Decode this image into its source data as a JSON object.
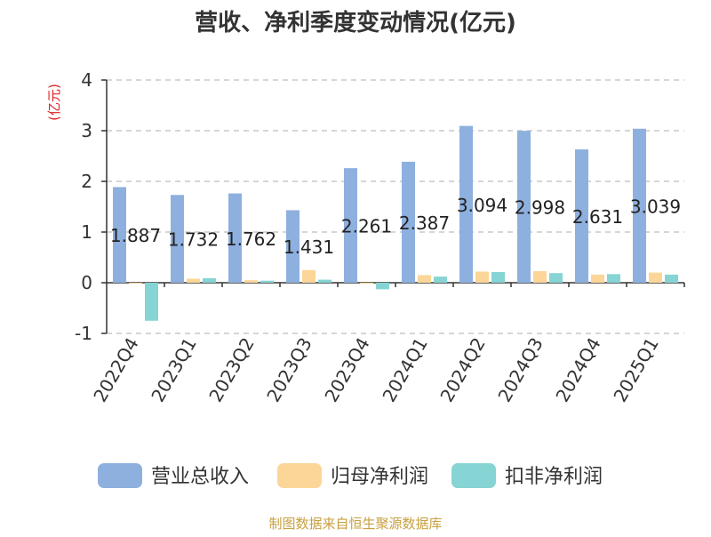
{
  "chart_data": {
    "type": "bar",
    "title": "营收、净利季度变动情况(亿元)",
    "ylabel": "(亿元)",
    "xlabel": "",
    "ylim": [
      -1,
      4
    ],
    "yticks": [
      -1,
      0,
      1,
      2,
      3,
      4
    ],
    "grid": true,
    "legend_position": "bottom",
    "categories": [
      "2022Q4",
      "2023Q1",
      "2023Q2",
      "2023Q3",
      "2023Q4",
      "2024Q1",
      "2024Q2",
      "2024Q3",
      "2024Q4",
      "2025Q1"
    ],
    "series": [
      {
        "name": "营业总收入",
        "color": "#8eb0df",
        "values": [
          1.887,
          1.732,
          1.762,
          1.431,
          2.261,
          2.387,
          3.094,
          2.998,
          2.631,
          3.039
        ],
        "labels": [
          "1.887",
          "1.732",
          "1.762",
          "1.431",
          "2.261",
          "2.387",
          "3.094",
          "2.998",
          "2.631",
          "3.039"
        ]
      },
      {
        "name": "归母净利润",
        "color": "#fbd698",
        "values": [
          -0.01,
          0.08,
          0.05,
          0.25,
          -0.02,
          0.15,
          0.22,
          0.23,
          0.16,
          0.2
        ]
      },
      {
        "name": "扣非净利润",
        "color": "#86d4d3",
        "values": [
          -0.75,
          0.09,
          0.04,
          0.06,
          -0.13,
          0.12,
          0.21,
          0.19,
          0.17,
          0.16
        ]
      }
    ]
  },
  "footer": {
    "source": "制图数据来自恒生聚源数据库"
  }
}
